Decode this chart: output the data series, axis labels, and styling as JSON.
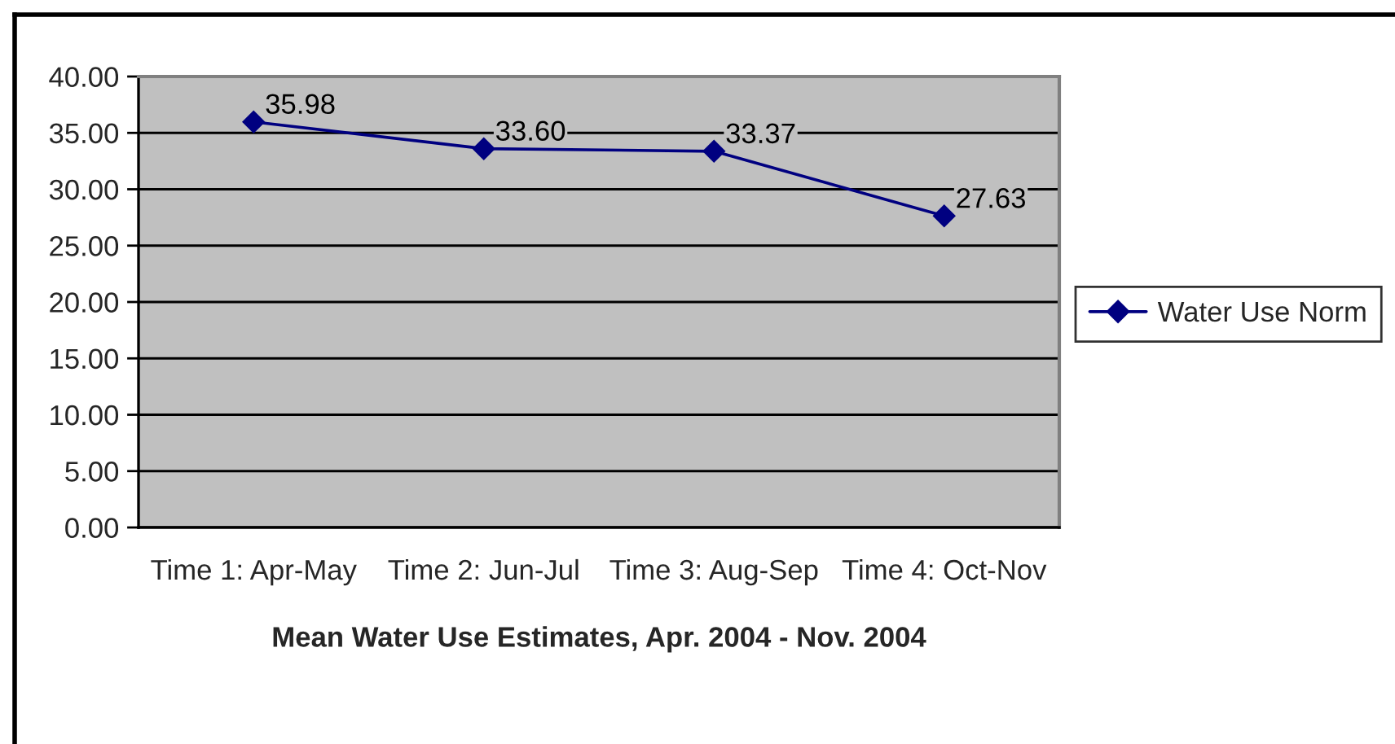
{
  "chart_data": {
    "type": "line",
    "xlabel": "Mean Water Use Estimates, Apr. 2004 - Nov. 2004",
    "categories": [
      "Time 1: Apr-May",
      "Time 2: Jun-Jul",
      "Time 3: Aug-Sep",
      "Time 4: Oct-Nov"
    ],
    "series": [
      {
        "name": "Water Use Norm",
        "color": "#000080",
        "values": [
          35.98,
          33.6,
          33.37,
          27.63
        ],
        "value_labels": [
          "35.98",
          "33.60",
          "33.37",
          "27.63"
        ]
      }
    ],
    "ylim": [
      0,
      40
    ],
    "yticks": [
      {
        "value": 0,
        "label": "0.00"
      },
      {
        "value": 5,
        "label": "5.00"
      },
      {
        "value": 10,
        "label": "10.00"
      },
      {
        "value": 15,
        "label": "15.00"
      },
      {
        "value": 20,
        "label": "20.00"
      },
      {
        "value": 25,
        "label": "25.00"
      },
      {
        "value": 30,
        "label": "30.00"
      },
      {
        "value": 35,
        "label": "35.00"
      },
      {
        "value": 40,
        "label": "40.00"
      }
    ],
    "grid": "y",
    "legend": "right",
    "marker": "diamond",
    "line_style": "solid"
  }
}
